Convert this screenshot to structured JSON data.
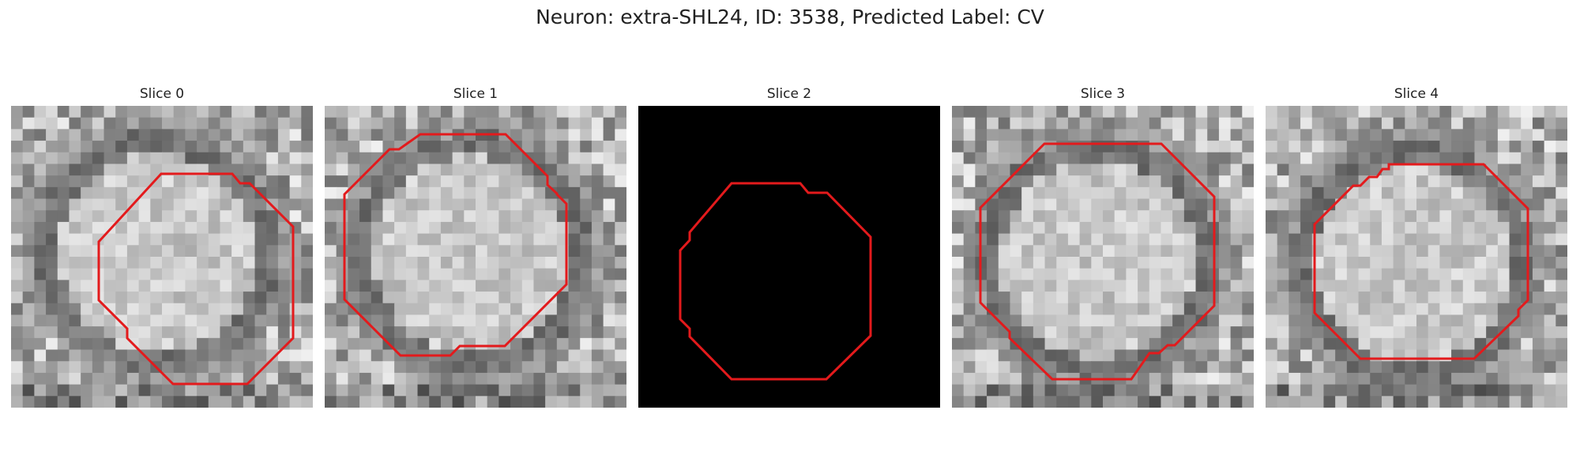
{
  "figure": {
    "suptitle": "Neuron: extra-SHL24, ID: 3538, Predicted Label: CV"
  },
  "outline_color": "#e31a1c",
  "panels": [
    {
      "title": "Slice 0",
      "image": "grayscale-cell-image",
      "blank": false,
      "seed": 11
    },
    {
      "title": "Slice 1",
      "image": "grayscale-cell-image",
      "blank": false,
      "seed": 23
    },
    {
      "title": "Slice 2",
      "image": "black-empty-image",
      "blank": true,
      "seed": 0
    },
    {
      "title": "Slice 3",
      "image": "grayscale-cell-image",
      "blank": false,
      "seed": 37
    },
    {
      "title": "Slice 4",
      "image": "grayscale-cell-image",
      "blank": false,
      "seed": 51
    }
  ]
}
